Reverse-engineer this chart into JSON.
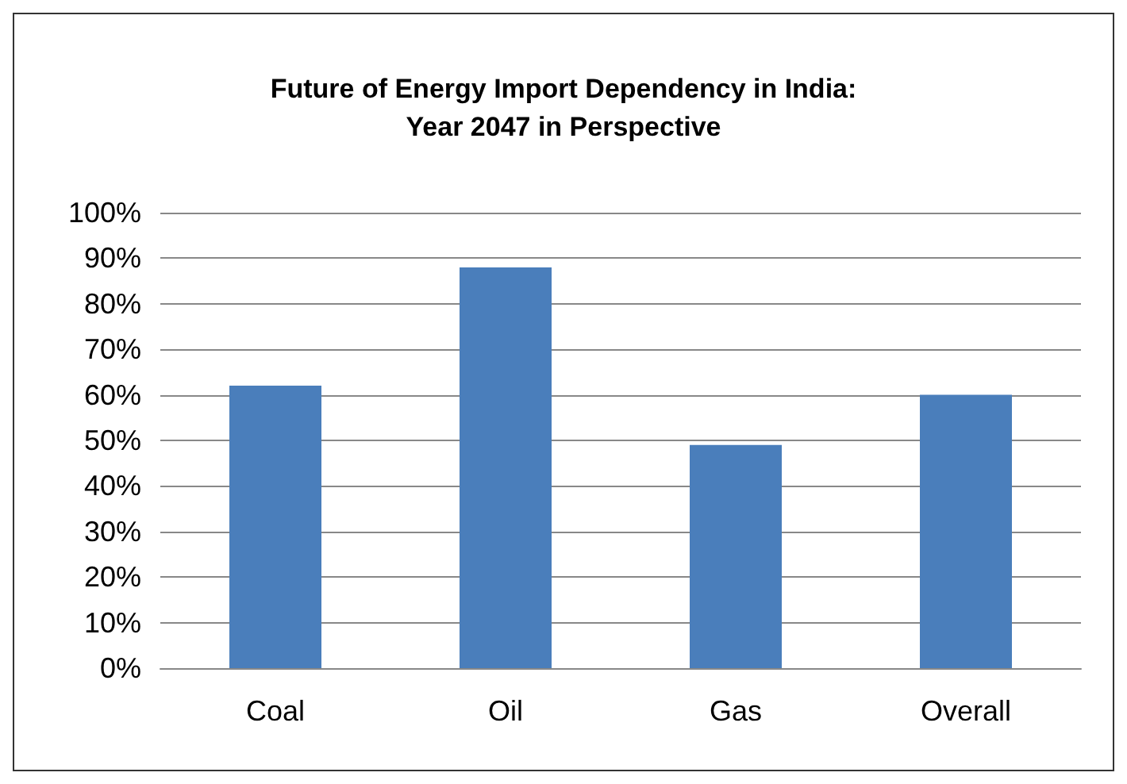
{
  "chart_data": {
    "type": "bar",
    "title": "Future of Energy Import Dependency in India:\nYear 2047 in Perspective",
    "categories": [
      "Coal",
      "Oil",
      "Gas",
      "Overall"
    ],
    "values": [
      62,
      88,
      49,
      60
    ],
    "color": "#4a7ebb",
    "ylim": [
      0,
      100
    ],
    "yticks": [
      {
        "value": 0,
        "label": "0%"
      },
      {
        "value": 10,
        "label": "10%"
      },
      {
        "value": 20,
        "label": "20%"
      },
      {
        "value": 30,
        "label": "30%"
      },
      {
        "value": 40,
        "label": "40%"
      },
      {
        "value": 50,
        "label": "50%"
      },
      {
        "value": 60,
        "label": "60%"
      },
      {
        "value": 70,
        "label": "70%"
      },
      {
        "value": 80,
        "label": "80%"
      },
      {
        "value": 90,
        "label": "90%"
      },
      {
        "value": 100,
        "label": "100%"
      }
    ],
    "grid": true
  }
}
